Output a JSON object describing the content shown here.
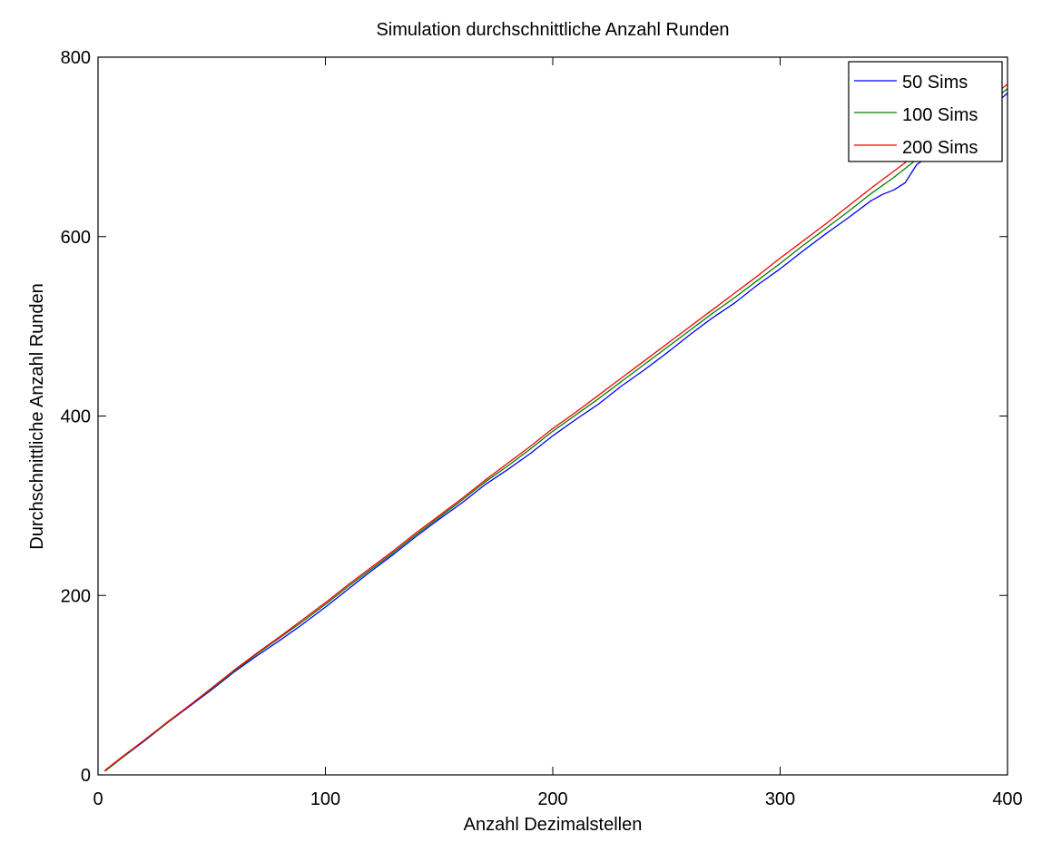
{
  "chart_data": {
    "type": "line",
    "title": "Simulation durchschnittliche Anzahl Runden",
    "xlabel": "Anzahl Dezimalstellen",
    "ylabel": "Durchschnittliche Anzahl Runden",
    "xlim": [
      0,
      400
    ],
    "ylim": [
      0,
      800
    ],
    "xticks": [
      0,
      100,
      200,
      300,
      400
    ],
    "yticks": [
      0,
      200,
      400,
      600,
      800
    ],
    "grid": false,
    "legend_position": "top-right",
    "series": [
      {
        "name": "50 Sims",
        "color": "#0000ff",
        "x": [
          3,
          10,
          20,
          30,
          40,
          50,
          60,
          70,
          80,
          90,
          100,
          110,
          120,
          130,
          140,
          150,
          160,
          170,
          180,
          190,
          200,
          210,
          220,
          230,
          240,
          250,
          260,
          270,
          280,
          290,
          300,
          310,
          320,
          330,
          340,
          345,
          350,
          355,
          360,
          370,
          380,
          390,
          400
        ],
        "y": [
          4,
          18,
          37,
          57,
          76,
          95,
          115,
          133,
          150,
          168,
          187,
          207,
          227,
          246,
          266,
          285,
          303,
          323,
          340,
          358,
          378,
          396,
          413,
          433,
          451,
          470,
          490,
          509,
          526,
          546,
          564,
          584,
          603,
          621,
          640,
          647,
          652,
          660,
          680,
          698,
          716,
          738,
          760
        ]
      },
      {
        "name": "100 Sims",
        "color": "#008000",
        "x": [
          3,
          10,
          20,
          30,
          40,
          50,
          60,
          70,
          80,
          90,
          100,
          110,
          120,
          130,
          140,
          150,
          160,
          170,
          180,
          190,
          200,
          210,
          220,
          230,
          240,
          250,
          260,
          270,
          280,
          290,
          300,
          310,
          320,
          330,
          340,
          350,
          360,
          370,
          380,
          390,
          400
        ],
        "y": [
          4,
          18,
          38,
          57,
          77,
          96,
          116,
          135,
          153,
          171,
          190,
          210,
          229,
          248,
          268,
          287,
          306,
          326,
          344,
          363,
          383,
          401,
          419,
          438,
          457,
          476,
          495,
          514,
          532,
          551,
          570,
          590,
          609,
          628,
          648,
          666,
          686,
          705,
          724,
          744,
          765
        ]
      },
      {
        "name": "200 Sims",
        "color": "#ff0000",
        "x": [
          3,
          10,
          20,
          30,
          40,
          50,
          60,
          70,
          80,
          90,
          100,
          110,
          120,
          130,
          140,
          150,
          160,
          170,
          180,
          190,
          200,
          210,
          220,
          230,
          240,
          250,
          260,
          270,
          280,
          290,
          300,
          310,
          320,
          330,
          340,
          350,
          360,
          370,
          380,
          390,
          400
        ],
        "y": [
          5,
          19,
          38,
          58,
          77,
          97,
          117,
          136,
          154,
          173,
          192,
          212,
          231,
          250,
          270,
          289,
          308,
          328,
          347,
          366,
          386,
          404,
          423,
          442,
          461,
          480,
          499,
          518,
          537,
          556,
          576,
          595,
          614,
          634,
          654,
          673,
          692,
          712,
          731,
          750,
          770
        ]
      }
    ]
  }
}
